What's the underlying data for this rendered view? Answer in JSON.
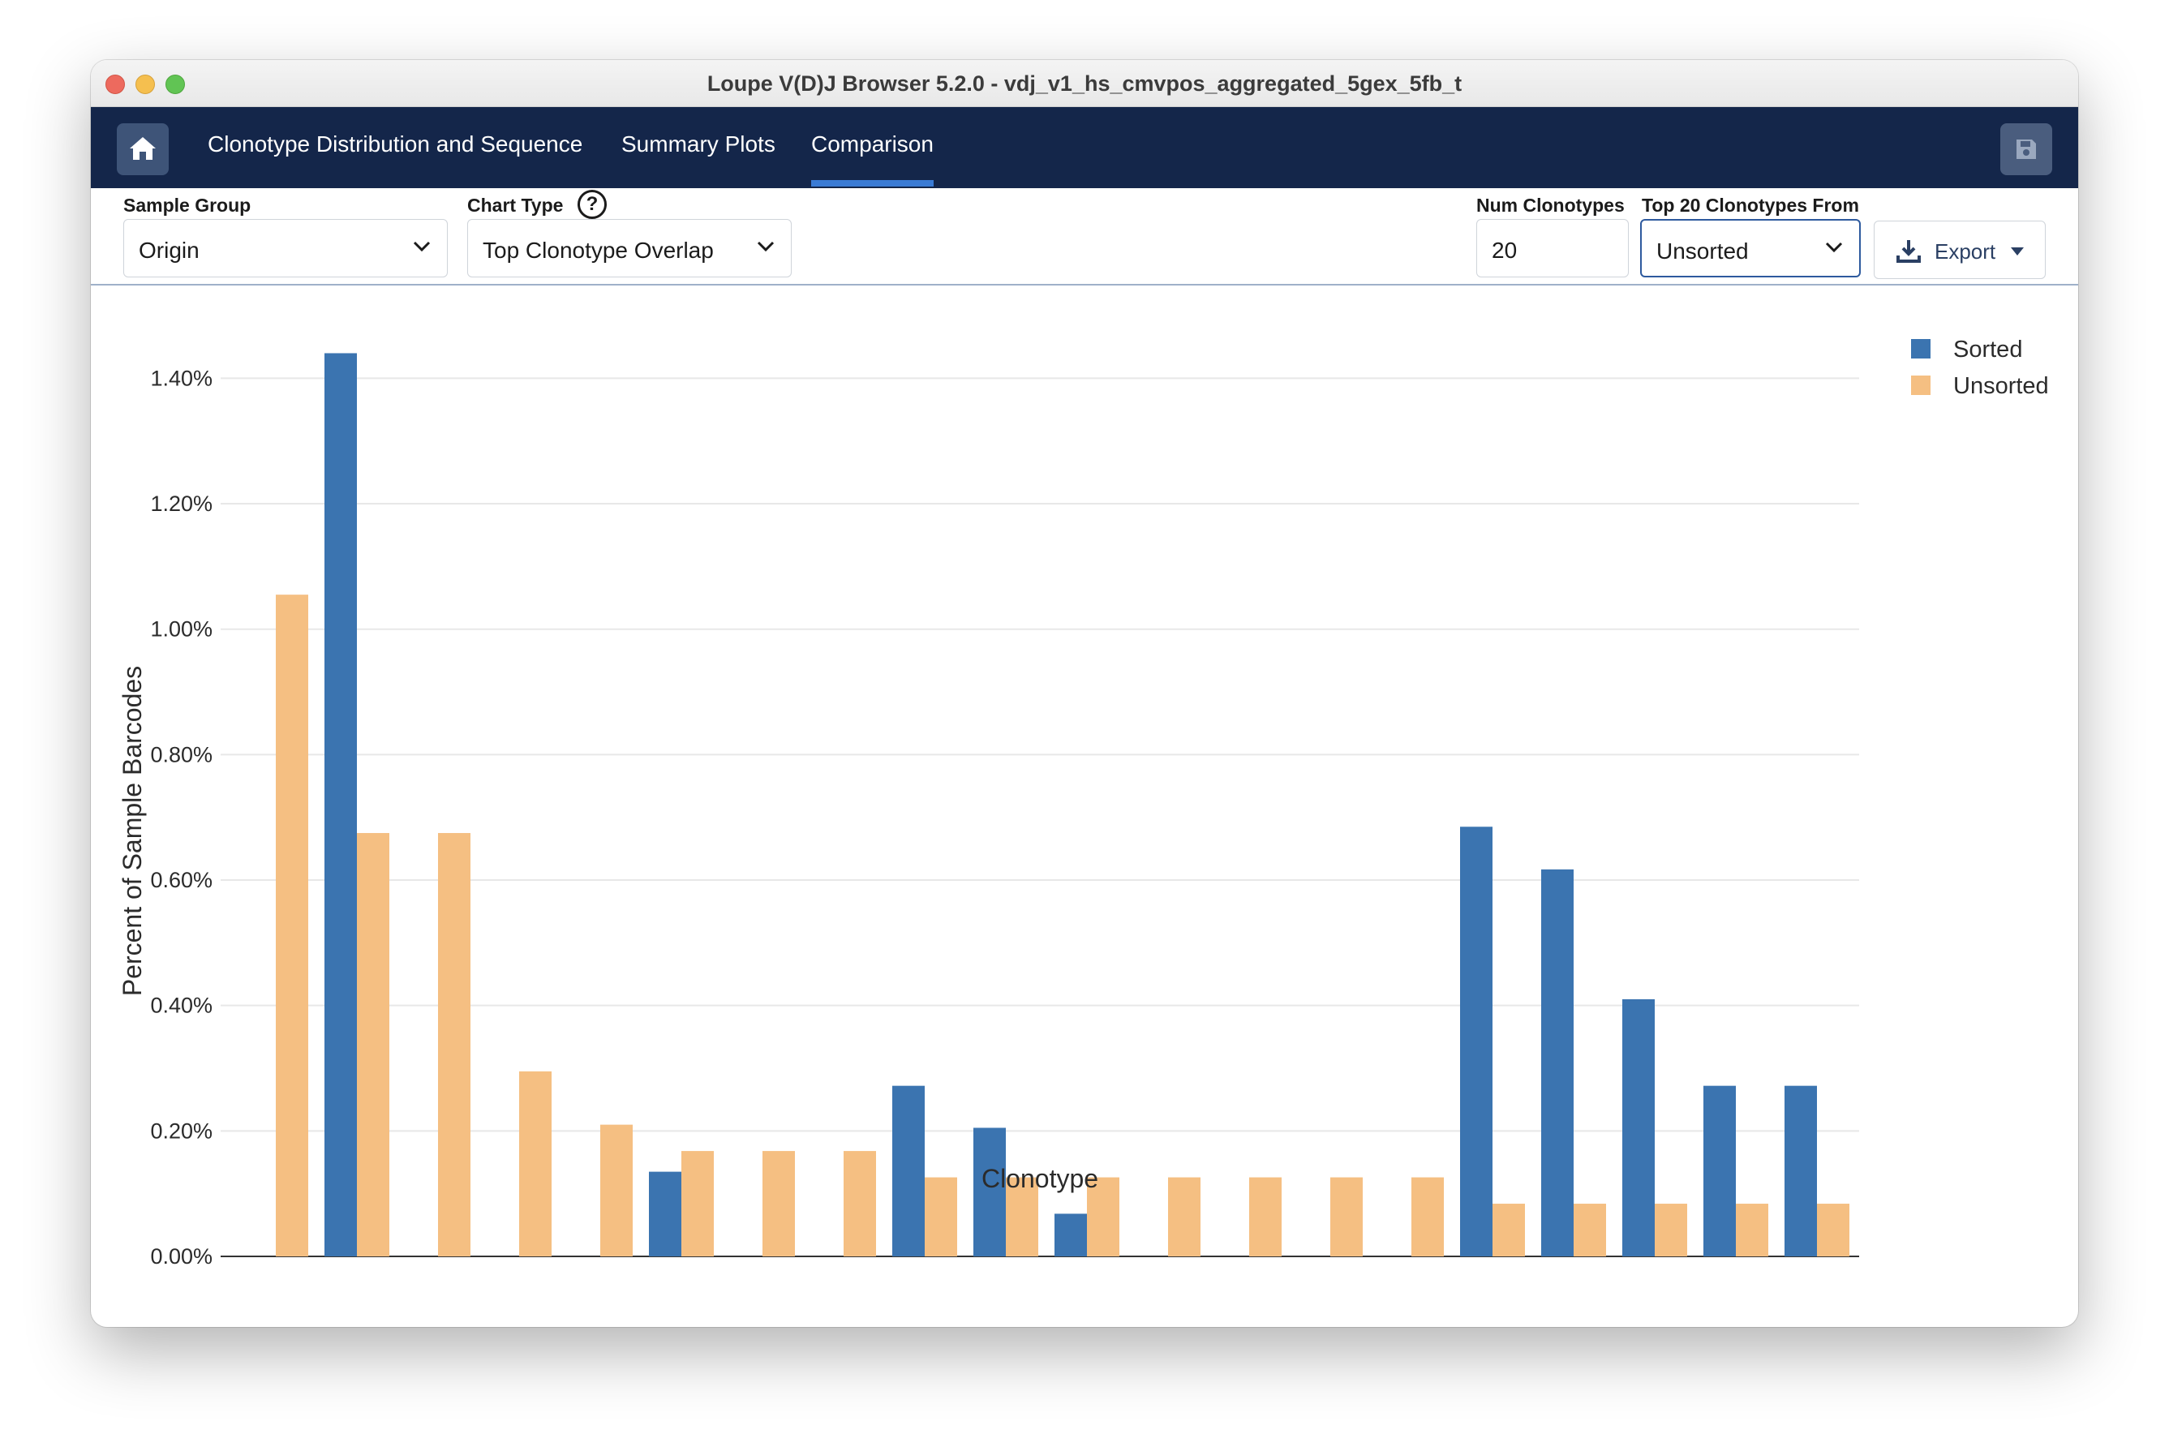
{
  "window": {
    "title": "Loupe V(D)J Browser 5.2.0 - vdj_v1_hs_cmvpos_aggregated_5gex_5fb_t"
  },
  "nav": {
    "tabs": [
      {
        "label": "Clonotype Distribution and Sequence",
        "active": false
      },
      {
        "label": "Summary Plots",
        "active": false
      },
      {
        "label": "Comparison",
        "active": true
      }
    ],
    "home_icon": "home-icon",
    "save_icon": "save-icon"
  },
  "controls": {
    "sample_group": {
      "label": "Sample Group",
      "value": "Origin"
    },
    "chart_type": {
      "label": "Chart Type",
      "value": "Top Clonotype Overlap",
      "help": "?"
    },
    "num_clonotypes": {
      "label": "Num Clonotypes",
      "value": "20"
    },
    "top_from": {
      "label": "Top 20 Clonotypes From",
      "value": "Unsorted"
    },
    "export": {
      "label": "Export"
    }
  },
  "colors": {
    "nav_bg": "#14264a",
    "sorted": "#3b74b0",
    "unsorted": "#f5bf82",
    "accent": "#3a7bd5"
  },
  "chart_data": {
    "type": "bar",
    "xlabel": "Clonotype",
    "ylabel": "Percent of Sample Barcodes",
    "ylim": [
      0,
      0.0146
    ],
    "yticks": [
      0,
      0.002,
      0.004,
      0.006,
      0.008,
      0.01,
      0.012,
      0.014
    ],
    "ytick_labels": [
      "0.00%",
      "0.20%",
      "0.40%",
      "0.60%",
      "0.80%",
      "1.00%",
      "1.20%",
      "1.40%"
    ],
    "grid": true,
    "legend_position": "top-right",
    "categories": [
      "",
      "",
      "",
      "",
      "",
      "",
      "",
      "",
      "",
      "",
      "",
      "",
      "",
      "",
      "",
      "",
      "",
      "",
      "",
      ""
    ],
    "series": [
      {
        "name": "Sorted",
        "color": "#3b74b0",
        "values": [
          0,
          0.0144,
          0,
          0,
          0,
          0.00135,
          0,
          0,
          0.00272,
          0.00205,
          0.00068,
          0,
          0,
          0,
          0,
          0.00685,
          0.00617,
          0.0041,
          0.00272,
          0.00272
        ]
      },
      {
        "name": "Unsorted",
        "color": "#f5bf82",
        "values": [
          0.01055,
          0.00675,
          0.00675,
          0.00295,
          0.0021,
          0.00168,
          0.00168,
          0.00168,
          0.00126,
          0.00126,
          0.00126,
          0.00126,
          0.00126,
          0.00126,
          0.00126,
          0.00084,
          0.00084,
          0.00084,
          0.00084,
          0.00084
        ]
      }
    ]
  }
}
